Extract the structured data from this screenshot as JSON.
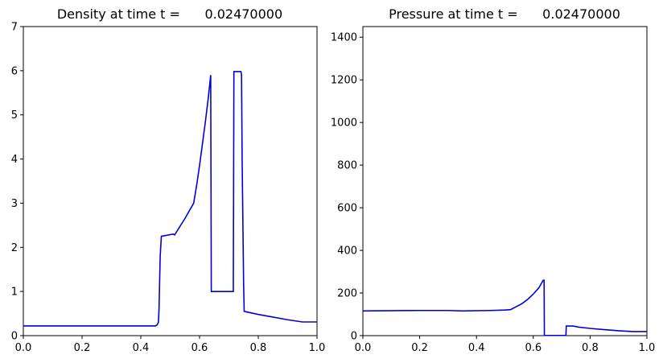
{
  "chart_data": [
    {
      "type": "line",
      "title": "Density at time t =      0.02470000",
      "xlabel": "",
      "ylabel": "",
      "xlim": [
        0.0,
        1.0
      ],
      "ylim": [
        0,
        7
      ],
      "xticks": [
        "0.0",
        "0.2",
        "0.4",
        "0.6",
        "0.8",
        "1.0"
      ],
      "yticks": [
        "0",
        "1",
        "2",
        "3",
        "4",
        "5",
        "6",
        "7"
      ],
      "grid": false,
      "series": [
        {
          "color": "#0000dd",
          "x": [
            0.0,
            0.45,
            0.455,
            0.46,
            0.462,
            0.464,
            0.466,
            0.47,
            0.51,
            0.515,
            0.55,
            0.58,
            0.59,
            0.6,
            0.61,
            0.62,
            0.63,
            0.638,
            0.639,
            0.64,
            0.7,
            0.715,
            0.716,
            0.717,
            0.74,
            0.741,
            0.743,
            0.745,
            0.75,
            0.752,
            0.8,
            0.85,
            0.9,
            0.95,
            1.0
          ],
          "y": [
            0.22,
            0.22,
            0.24,
            0.3,
            0.6,
            1.2,
            1.8,
            2.25,
            2.3,
            2.28,
            2.65,
            3.0,
            3.4,
            3.85,
            4.35,
            4.85,
            5.4,
            5.9,
            3.5,
            1.0,
            1.0,
            1.0,
            3.5,
            5.98,
            5.98,
            5.98,
            5.9,
            4.0,
            1.2,
            0.55,
            0.48,
            0.42,
            0.36,
            0.31,
            0.31
          ]
        }
      ]
    },
    {
      "type": "line",
      "title": "Pressure at time t =      0.02470000",
      "xlabel": "",
      "ylabel": "",
      "xlim": [
        0.0,
        1.0
      ],
      "ylim": [
        0,
        1450
      ],
      "xticks": [
        "0.0",
        "0.2",
        "0.4",
        "0.6",
        "0.8",
        "1.0"
      ],
      "yticks": [
        "0",
        "200",
        "400",
        "600",
        "800",
        "1000",
        "1200",
        "1400"
      ],
      "grid": false,
      "series": [
        {
          "color": "#0000dd",
          "x": [
            0.0,
            0.2,
            0.3,
            0.35,
            0.45,
            0.5,
            0.52,
            0.56,
            0.58,
            0.6,
            0.62,
            0.635,
            0.638,
            0.639,
            0.71,
            0.715,
            0.716,
            0.73,
            0.74,
            0.76,
            0.8,
            0.85,
            0.9,
            0.95,
            1.0
          ],
          "y": [
            116,
            118,
            118,
            116,
            118,
            120,
            122,
            150,
            170,
            195,
            225,
            260,
            260,
            1,
            1,
            1,
            45,
            45,
            45,
            40,
            34,
            28,
            23,
            19,
            19
          ]
        }
      ]
    }
  ]
}
